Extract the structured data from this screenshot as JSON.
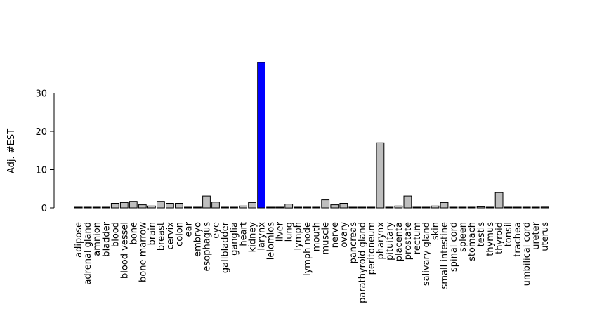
{
  "chart_data": {
    "type": "bar",
    "title": "",
    "xlabel": "",
    "ylabel": "Adj. #EST",
    "ylim": [
      0,
      40
    ],
    "yticks": [
      0,
      10,
      20,
      30
    ],
    "grid": false,
    "colors": {
      "default": "#bebebe",
      "highlight": "#0000ff",
      "stroke": "#000000"
    },
    "highlight_category": "larynx",
    "categories": [
      "adipose",
      "adrenal gland",
      "amnion",
      "bladder",
      "blood",
      "blood vessel",
      "bone",
      "bone marrow",
      "brain",
      "breast",
      "cervix",
      "colon",
      "ear",
      "embryo",
      "esophagus",
      "eye",
      "gallbladder",
      "ganglia",
      "heart",
      "kidney",
      "larynx",
      "leiomios",
      "liver",
      "lung",
      "lymph",
      "lymph node",
      "mouth",
      "muscle",
      "nerve",
      "ovary",
      "pancreas",
      "parathyroid gland",
      "peritoneum",
      "pharynx",
      "pituitary",
      "placenta",
      "prostate",
      "rectum",
      "salivary gland",
      "skin",
      "small intestine",
      "spinal cord",
      "spleen",
      "stomach",
      "testis",
      "thymus",
      "thyroid",
      "tonsil",
      "trachea",
      "umbilical cord",
      "ureter",
      "uterus"
    ],
    "values": [
      0,
      0,
      0,
      0,
      1.2,
      1.4,
      1.7,
      0.8,
      0.5,
      1.7,
      1.2,
      1.2,
      0,
      0,
      3.1,
      1.5,
      0,
      0,
      0.5,
      1.4,
      38,
      0,
      0.1,
      1.0,
      0,
      0,
      0,
      2.1,
      0.8,
      1.2,
      0,
      0,
      0,
      17,
      0,
      0.5,
      3.1,
      0,
      0,
      0.5,
      1.4,
      0,
      0,
      0,
      0.3,
      0,
      4.0,
      0,
      0,
      0,
      0,
      0.2
    ]
  }
}
